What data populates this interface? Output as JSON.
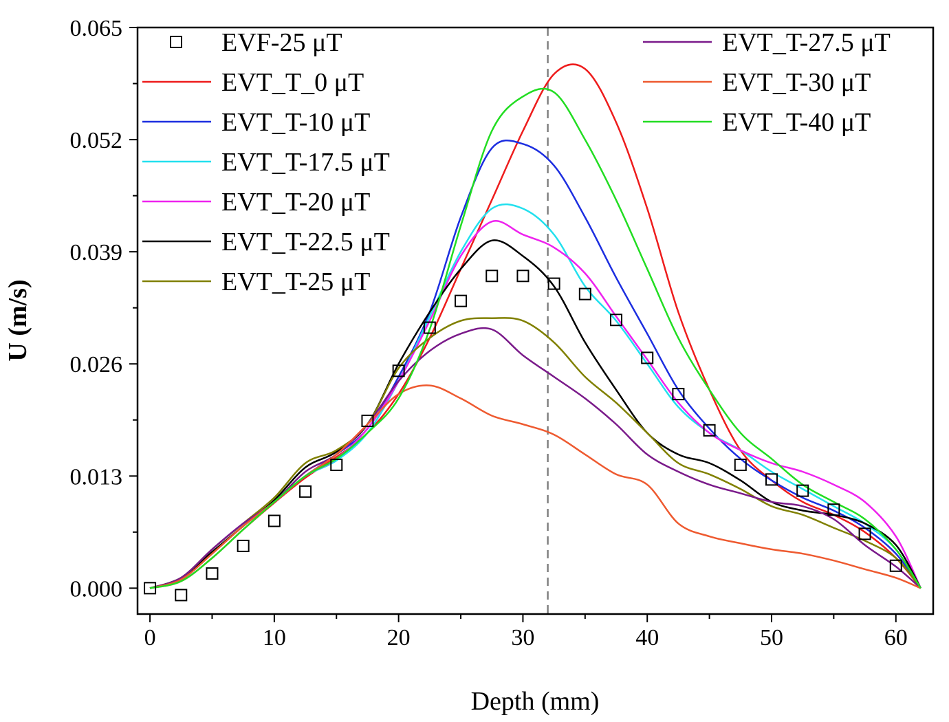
{
  "chart_data": {
    "type": "line",
    "title": "",
    "xlabel": "Depth (mm)",
    "ylabel": "U (m/s)",
    "xlim": [
      -1,
      63
    ],
    "ylim": [
      -0.003,
      0.065
    ],
    "xticks": [
      0,
      10,
      20,
      30,
      40,
      50,
      60
    ],
    "xtick_labels": [
      "0",
      "10",
      "20",
      "30",
      "40",
      "50",
      "60"
    ],
    "yticks": [
      0.0,
      0.013,
      0.026,
      0.039,
      0.052,
      0.065
    ],
    "ytick_labels": [
      "0.000",
      "0.013",
      "0.026",
      "0.039",
      "0.052",
      "0.065"
    ],
    "reference_line_x": 32,
    "grid": false,
    "legend_position": "top-left and top-right",
    "scatter_series": {
      "name": "EVF-25 μT",
      "marker": "open-square",
      "color": "#000000",
      "x": [
        0,
        2.5,
        5,
        7.5,
        10,
        12.5,
        15,
        17.5,
        20,
        22.5,
        25,
        27.5,
        30,
        32.5,
        35,
        37.5,
        40,
        42.5,
        45,
        47.5,
        50,
        52.5,
        55,
        57.5,
        60
      ],
      "y": [
        0.0,
        -0.0008,
        0.0017,
        0.0049,
        0.0078,
        0.0112,
        0.0143,
        0.0194,
        0.0252,
        0.0302,
        0.0333,
        0.0362,
        0.0362,
        0.0353,
        0.0341,
        0.0311,
        0.0267,
        0.0225,
        0.0183,
        0.0143,
        0.0126,
        0.0113,
        0.0091,
        0.0063,
        0.0026
      ]
    },
    "x": [
      0,
      2.5,
      5,
      7.5,
      10,
      12.5,
      15,
      17.5,
      20,
      22.5,
      25,
      27.5,
      30,
      32.5,
      35,
      37.5,
      40,
      42.5,
      45,
      47.5,
      50,
      52.5,
      55,
      57.5,
      60,
      62
    ],
    "series": [
      {
        "name": "EVT_T_0 μT",
        "color": "#ee1c1c",
        "values": [
          0.0,
          0.0008,
          0.0035,
          0.0068,
          0.0099,
          0.0128,
          0.0152,
          0.018,
          0.0225,
          0.029,
          0.037,
          0.045,
          0.053,
          0.0596,
          0.0602,
          0.054,
          0.044,
          0.032,
          0.023,
          0.016,
          0.0125,
          0.01,
          0.0085,
          0.0065,
          0.0035,
          0.0
        ]
      },
      {
        "name": "EVT_T-10 μT",
        "color": "#1c2ee0",
        "values": [
          0.0,
          0.001,
          0.004,
          0.0072,
          0.01,
          0.013,
          0.0155,
          0.0185,
          0.0245,
          0.032,
          0.043,
          0.051,
          0.0515,
          0.049,
          0.043,
          0.036,
          0.0295,
          0.023,
          0.0185,
          0.015,
          0.0125,
          0.0105,
          0.009,
          0.007,
          0.004,
          0.0
        ]
      },
      {
        "name": "EVT_T-17.5 μT",
        "color": "#22e0ee",
        "values": [
          0.0,
          0.0012,
          0.0045,
          0.0075,
          0.01,
          0.013,
          0.0148,
          0.018,
          0.024,
          0.0315,
          0.039,
          0.044,
          0.044,
          0.041,
          0.035,
          0.031,
          0.026,
          0.021,
          0.018,
          0.016,
          0.0135,
          0.0115,
          0.0095,
          0.0075,
          0.0045,
          0.0
        ]
      },
      {
        "name": "EVT_T-20 μT",
        "color": "#ee22ee",
        "values": [
          0.0,
          0.0012,
          0.0045,
          0.0075,
          0.01,
          0.013,
          0.015,
          0.0185,
          0.024,
          0.031,
          0.0385,
          0.0425,
          0.041,
          0.0395,
          0.0365,
          0.0315,
          0.0265,
          0.0215,
          0.018,
          0.016,
          0.0145,
          0.0135,
          0.012,
          0.01,
          0.006,
          0.0
        ]
      },
      {
        "name": "EVT_T-22.5 μT",
        "color": "#000000",
        "values": [
          0.0,
          0.0012,
          0.0042,
          0.0072,
          0.0102,
          0.014,
          0.0158,
          0.019,
          0.026,
          0.032,
          0.037,
          0.0403,
          0.0385,
          0.035,
          0.0285,
          0.023,
          0.018,
          0.0155,
          0.0145,
          0.0125,
          0.01,
          0.009,
          0.0085,
          0.0075,
          0.005,
          0.0
        ]
      },
      {
        "name": "EVT_T-25 μT",
        "color": "#808000",
        "values": [
          0.0,
          0.0012,
          0.0045,
          0.0075,
          0.0105,
          0.0145,
          0.016,
          0.019,
          0.0255,
          0.029,
          0.031,
          0.0313,
          0.031,
          0.0285,
          0.0245,
          0.0215,
          0.018,
          0.0145,
          0.0132,
          0.0115,
          0.0095,
          0.0085,
          0.007,
          0.0055,
          0.0035,
          0.0
        ]
      },
      {
        "name": "EVT_T-27.5 μT",
        "color": "#7a1a8a",
        "values": [
          0.0,
          0.0012,
          0.0045,
          0.0075,
          0.01,
          0.0135,
          0.0155,
          0.019,
          0.024,
          0.0275,
          0.0295,
          0.03,
          0.027,
          0.0245,
          0.022,
          0.019,
          0.0155,
          0.0135,
          0.012,
          0.011,
          0.01,
          0.0095,
          0.008,
          0.005,
          0.0025,
          0.0
        ]
      },
      {
        "name": "EVT_T-30 μT",
        "color": "#ee5a30",
        "values": [
          0.0,
          0.001,
          0.004,
          0.0072,
          0.01,
          0.013,
          0.0155,
          0.019,
          0.0225,
          0.0235,
          0.022,
          0.02,
          0.019,
          0.0178,
          0.0155,
          0.0132,
          0.012,
          0.0075,
          0.006,
          0.0052,
          0.0045,
          0.004,
          0.0032,
          0.0022,
          0.0012,
          0.0
        ]
      },
      {
        "name": "EVT_T-40 μT",
        "color": "#22dd22",
        "values": [
          0.0,
          0.0008,
          0.0035,
          0.0068,
          0.01,
          0.013,
          0.015,
          0.018,
          0.022,
          0.03,
          0.042,
          0.053,
          0.057,
          0.0575,
          0.052,
          0.045,
          0.037,
          0.029,
          0.023,
          0.018,
          0.015,
          0.012,
          0.01,
          0.008,
          0.0045,
          0.0
        ]
      }
    ],
    "legend_left": [
      "EVF-25 μT",
      "EVT_T_0 μT",
      "EVT_T-10 μT",
      "EVT_T-17.5 μT",
      "EVT_T-20 μT",
      "EVT_T-22.5 μT",
      "EVT_T-25 μT"
    ],
    "legend_right": [
      "EVT_T-27.5 μT",
      "EVT_T-30 μT",
      "EVT_T-40 μT"
    ]
  }
}
